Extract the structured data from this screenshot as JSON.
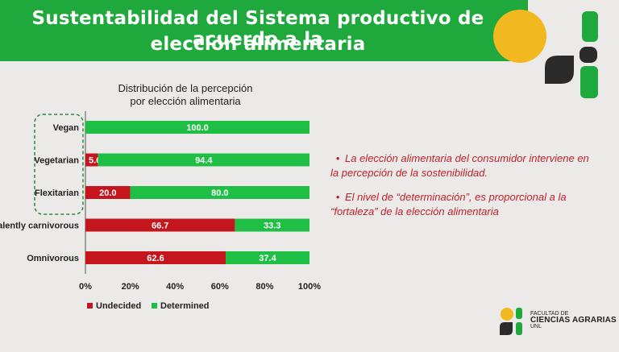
{
  "slide": {
    "title_line1": "Sustentabilidad del Sistema productivo de acuerdo a la",
    "title_line2": "elección alimentaria"
  },
  "bullets": [
    "La elección alimentaria del consumidor interviene en la percepción de la sostenibilidad.",
    "El nivel de “determinación”, es proporcional a la  “fortaleza” de la elección alimentaria"
  ],
  "footer": {
    "line1": "FACULTAD DE",
    "line2": "CIENCIAS AGRARIAS",
    "line3": "UNL"
  },
  "chart_data": {
    "type": "bar",
    "orientation": "horizontal",
    "stacked": true,
    "title": "Distribución de la percepción por elección alimentaria",
    "title_line1": "Distribución de la percepción",
    "title_line2": "por elección alimentaria",
    "categories": [
      "Vegan",
      "Vegetarian",
      "Flexitarian",
      "alently carnivorous",
      "Omnivorous"
    ],
    "series": [
      {
        "name": "Undecided",
        "color": "#c4161c",
        "values": [
          0,
          5.6,
          20.0,
          66.7,
          62.6
        ],
        "labels": [
          "0",
          "5.6",
          "20.0",
          "66.7",
          "62.6"
        ]
      },
      {
        "name": "Determined",
        "color": "#1fbf46",
        "values": [
          100.0,
          94.4,
          80.0,
          33.3,
          37.4
        ],
        "labels": [
          "100.0",
          "94.4",
          "80.0",
          "33.3",
          "37.4"
        ]
      }
    ],
    "xlim": [
      0,
      100
    ],
    "xticks": [
      "0%",
      "20%",
      "40%",
      "60%",
      "80%",
      "100%"
    ],
    "legend_position": "bottom",
    "grid": false
  }
}
